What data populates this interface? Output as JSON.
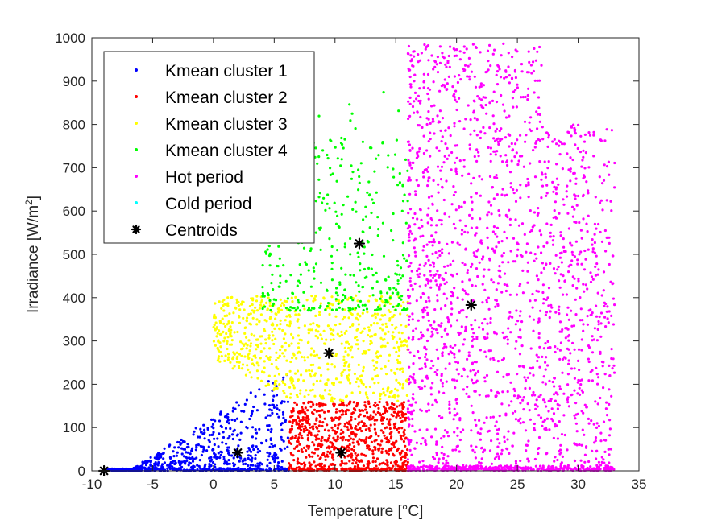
{
  "chart_data": {
    "type": "scatter",
    "title": "",
    "xlabel": "Temperature [°C]",
    "ylabel_main": "Irradiance [W/m",
    "ylabel_sup": "2",
    "ylabel_end": "]",
    "xlim": [
      -10,
      35
    ],
    "ylim": [
      0,
      1000
    ],
    "xticks": [
      -10,
      -5,
      0,
      5,
      10,
      15,
      20,
      25,
      30,
      35
    ],
    "yticks": [
      0,
      100,
      200,
      300,
      400,
      500,
      600,
      700,
      800,
      900,
      1000
    ],
    "grid": false,
    "legend_position": "top-left",
    "series": [
      {
        "name": "Kmean cluster 1",
        "color": "#0000ff",
        "marker": "dot",
        "region": {
          "x": [
            -9,
            6.2
          ],
          "y": [
            0,
            240
          ]
        },
        "count": 650
      },
      {
        "name": "Kmean cluster 2",
        "color": "#ff0000",
        "marker": "dot",
        "region": {
          "x": [
            6.2,
            16
          ],
          "y": [
            0,
            160
          ]
        },
        "count": 700
      },
      {
        "name": "Kmean cluster 3",
        "color": "#ffff00",
        "marker": "dot",
        "region": {
          "x": [
            0,
            16
          ],
          "y": [
            160,
            405
          ]
        },
        "count": 750
      },
      {
        "name": "Kmean cluster 4",
        "color": "#00ff00",
        "marker": "dot",
        "region": {
          "x": [
            2,
            16
          ],
          "y": [
            370,
            915
          ]
        },
        "count": 380
      },
      {
        "name": "Hot period",
        "color": "#ff00ff",
        "marker": "dot",
        "region": {
          "x": [
            16,
            33
          ],
          "y": [
            0,
            990
          ]
        },
        "count": 2100
      },
      {
        "name": "Cold period",
        "color": "#00ffff",
        "marker": "dot",
        "region": null,
        "count": 0
      },
      {
        "name": "Centroids",
        "color": "#000000",
        "marker": "asterisk",
        "points": [
          {
            "x": -9,
            "y": 0
          },
          {
            "x": 2,
            "y": 42
          },
          {
            "x": 10.5,
            "y": 42
          },
          {
            "x": 9.5,
            "y": 272
          },
          {
            "x": 12,
            "y": 525
          },
          {
            "x": 21.2,
            "y": 383
          }
        ]
      }
    ]
  }
}
